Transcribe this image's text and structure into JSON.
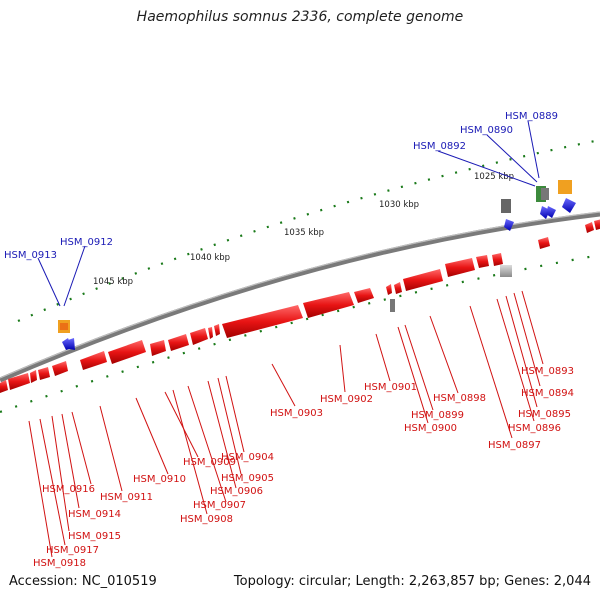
{
  "title": "Haemophilus somnus 2336, complete genome",
  "footer": {
    "accession": "Accession: NC_010519",
    "summary": "Topology: circular; Length: 2,263,857 bp; Genes: 2,044"
  },
  "colors": {
    "backbone": "#7a7a7a",
    "gene_fwd": "#e81414",
    "gene_rev": "#1414e8",
    "label_top": "#1a1ab5",
    "label_bottom": "#d11212",
    "tick": "#1a7a1a"
  },
  "scale_labels": [
    "1025 kbp",
    "1030 kbp",
    "1035 kbp",
    "1040 kbp",
    "1045 kbp"
  ],
  "top_labels": [
    "HSM_0889",
    "HSM_0890",
    "HSM_0892",
    "HSM_0912",
    "HSM_0913"
  ],
  "bottom_labels": [
    "HSM_0893",
    "HSM_0894",
    "HSM_0895",
    "HSM_0896",
    "HSM_0897",
    "HSM_0898",
    "HSM_0901",
    "HSM_0899",
    "HSM_0900",
    "HSM_0902",
    "HSM_0903",
    "HSM_0904",
    "HSM_0905",
    "HSM_0906",
    "HSM_0907",
    "HSM_0908",
    "HSM_0909",
    "HSM_0910",
    "HSM_0911",
    "HSM_0916",
    "HSM_0914",
    "HSM_0915",
    "HSM_0917",
    "HSM_0918"
  ]
}
